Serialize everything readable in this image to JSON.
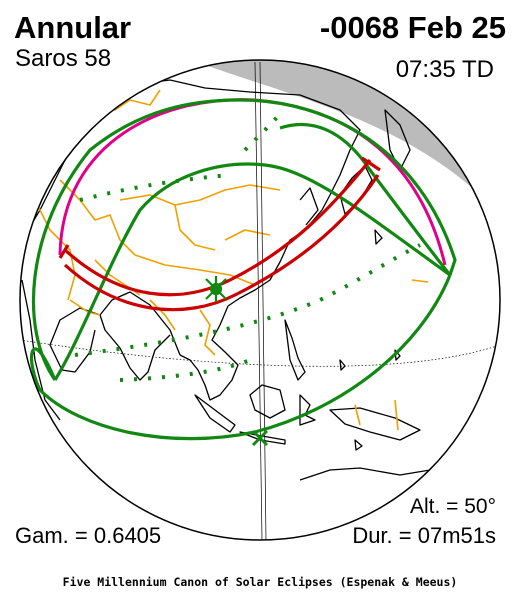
{
  "header": {
    "eclipse_type": "Annular",
    "date": "-0068 Feb 25",
    "saros": "Saros  58",
    "time": "07:35 TD"
  },
  "stats": {
    "altitude": "Alt. = 50°",
    "gamma": "Gam. = 0.6405",
    "duration": "Dur. = 07m51s"
  },
  "footer": "Five Millennium Canon of Solar Eclipses (Espenak & Meeus)",
  "colors": {
    "central_path": "#cc0000",
    "penumbra_limits": "#118811",
    "rise_set_curve": "#e0008a",
    "borders": "#f0a000",
    "night_side": "#bbbbbb",
    "coastlines": "#000000"
  },
  "markers": {
    "greatest_eclipse": "star-asterisk",
    "sub_solar": "x-mark"
  }
}
